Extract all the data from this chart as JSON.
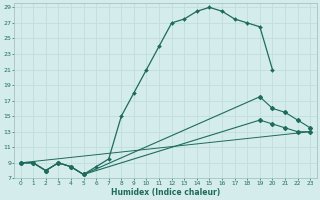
{
  "xlabel": "Humidex (Indice chaleur)",
  "bg_color": "#d4ecec",
  "line_color": "#1e6b5e",
  "grid_color": "#c0dede",
  "series1_x": [
    0,
    1,
    2,
    3,
    4,
    5,
    6,
    7,
    8,
    9,
    10,
    11,
    12,
    13,
    14,
    15,
    16,
    17,
    18,
    19,
    20
  ],
  "series1_y": [
    9,
    9,
    8,
    9,
    8.5,
    7.5,
    8.5,
    9.5,
    15,
    18,
    21,
    24,
    27,
    27.5,
    28.5,
    29,
    28.5,
    27.5,
    27,
    26.5,
    21
  ],
  "series2_x": [
    0,
    1,
    2,
    3,
    4,
    5,
    19,
    20,
    21,
    22,
    23
  ],
  "series2_y": [
    9,
    9,
    8,
    9,
    8.5,
    7.5,
    17.5,
    16,
    15.5,
    14.5,
    13.5
  ],
  "series3_x": [
    0,
    1,
    2,
    3,
    4,
    5,
    19,
    20,
    21,
    22,
    23
  ],
  "series3_y": [
    9,
    9,
    8,
    9,
    8.5,
    7.5,
    14.5,
    14,
    13.5,
    13,
    13
  ],
  "series4_x": [
    0,
    23
  ],
  "series4_y": [
    9,
    13
  ],
  "xlim": [
    -0.5,
    23.5
  ],
  "ylim": [
    7,
    29.5
  ],
  "xticks": [
    0,
    1,
    2,
    3,
    4,
    5,
    6,
    7,
    8,
    9,
    10,
    11,
    12,
    13,
    14,
    15,
    16,
    17,
    18,
    19,
    20,
    21,
    22,
    23
  ],
  "yticks": [
    7,
    9,
    11,
    13,
    15,
    17,
    19,
    21,
    23,
    25,
    27,
    29
  ]
}
